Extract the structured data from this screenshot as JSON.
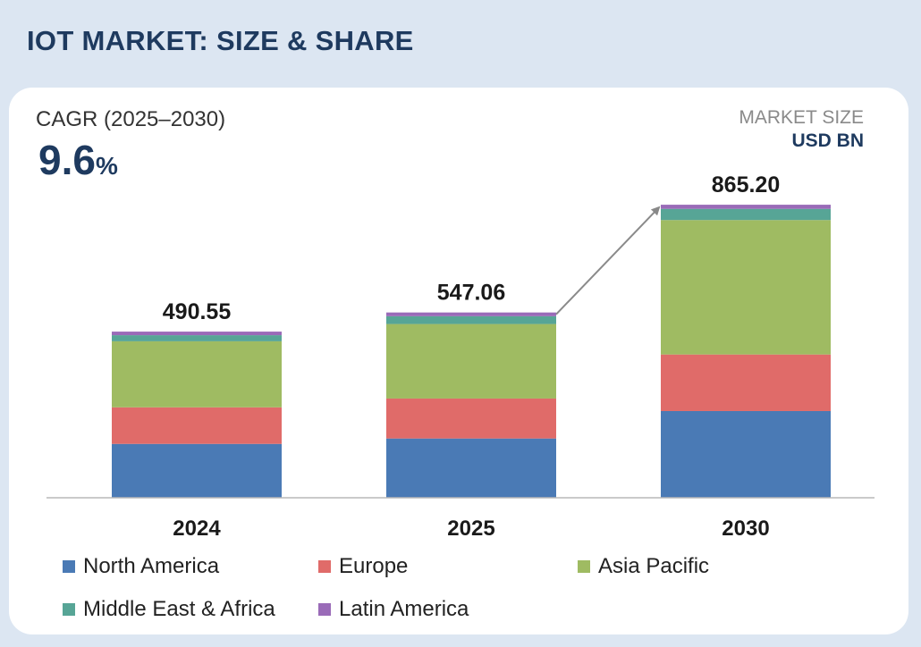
{
  "page": {
    "title": "IOT MARKET: SIZE & SHARE"
  },
  "cagr": {
    "label": "CAGR (2025–2030)",
    "value": "9.6",
    "unit": "%"
  },
  "market_size": {
    "label": "MARKET SIZE",
    "unit": "USD BN"
  },
  "chart_data": {
    "type": "bar",
    "stacked": true,
    "title": "IOT MARKET: SIZE & SHARE",
    "ylabel": "USD BN",
    "categories": [
      "2024",
      "2025",
      "2030"
    ],
    "totals": [
      "490.55",
      "547.06",
      "865.20"
    ],
    "ylim": [
      0,
      950
    ],
    "series": [
      {
        "name": "North America",
        "color": "#4a7ab5",
        "values": [
          159,
          175,
          256
        ]
      },
      {
        "name": "Europe",
        "color": "#e06b69",
        "values": [
          108,
          118,
          167
        ]
      },
      {
        "name": "Asia Pacific",
        "color": "#9fbb62",
        "values": [
          195,
          220,
          397
        ]
      },
      {
        "name": "Middle East & Africa",
        "color": "#57a596",
        "values": [
          18,
          23,
          33
        ]
      },
      {
        "name": "Latin America",
        "color": "#9a6bb8",
        "values": [
          10.55,
          11.06,
          12.2
        ]
      }
    ],
    "annotation": "arrow from 2025 to 2030 indicating CAGR"
  }
}
